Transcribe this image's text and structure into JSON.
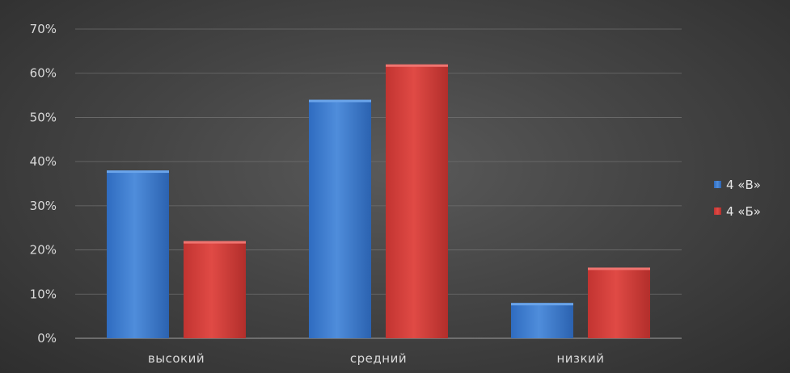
{
  "colors": {
    "series_1": "#4a86d4",
    "series_2": "#d8433f",
    "gridline": "#6e6e6e",
    "text": "#d9d9d9"
  },
  "legend": {
    "placement": "right",
    "items": [
      {
        "label": "4 «В»"
      },
      {
        "label": "4 «Б»"
      }
    ]
  },
  "chart_data": {
    "type": "bar",
    "categories": [
      "высокий",
      "средний",
      "низкий"
    ],
    "series": [
      {
        "name": "4 «В»",
        "values": [
          0.38,
          0.54,
          0.08
        ]
      },
      {
        "name": "4 «Б»",
        "values": [
          0.22,
          0.62,
          0.16
        ]
      }
    ],
    "ylim": [
      0,
      0.7
    ],
    "y_ticks": [
      "0%",
      "10%",
      "20%",
      "30%",
      "40%",
      "50%",
      "60%",
      "70%"
    ],
    "grid": true,
    "legend_placement": "right"
  }
}
